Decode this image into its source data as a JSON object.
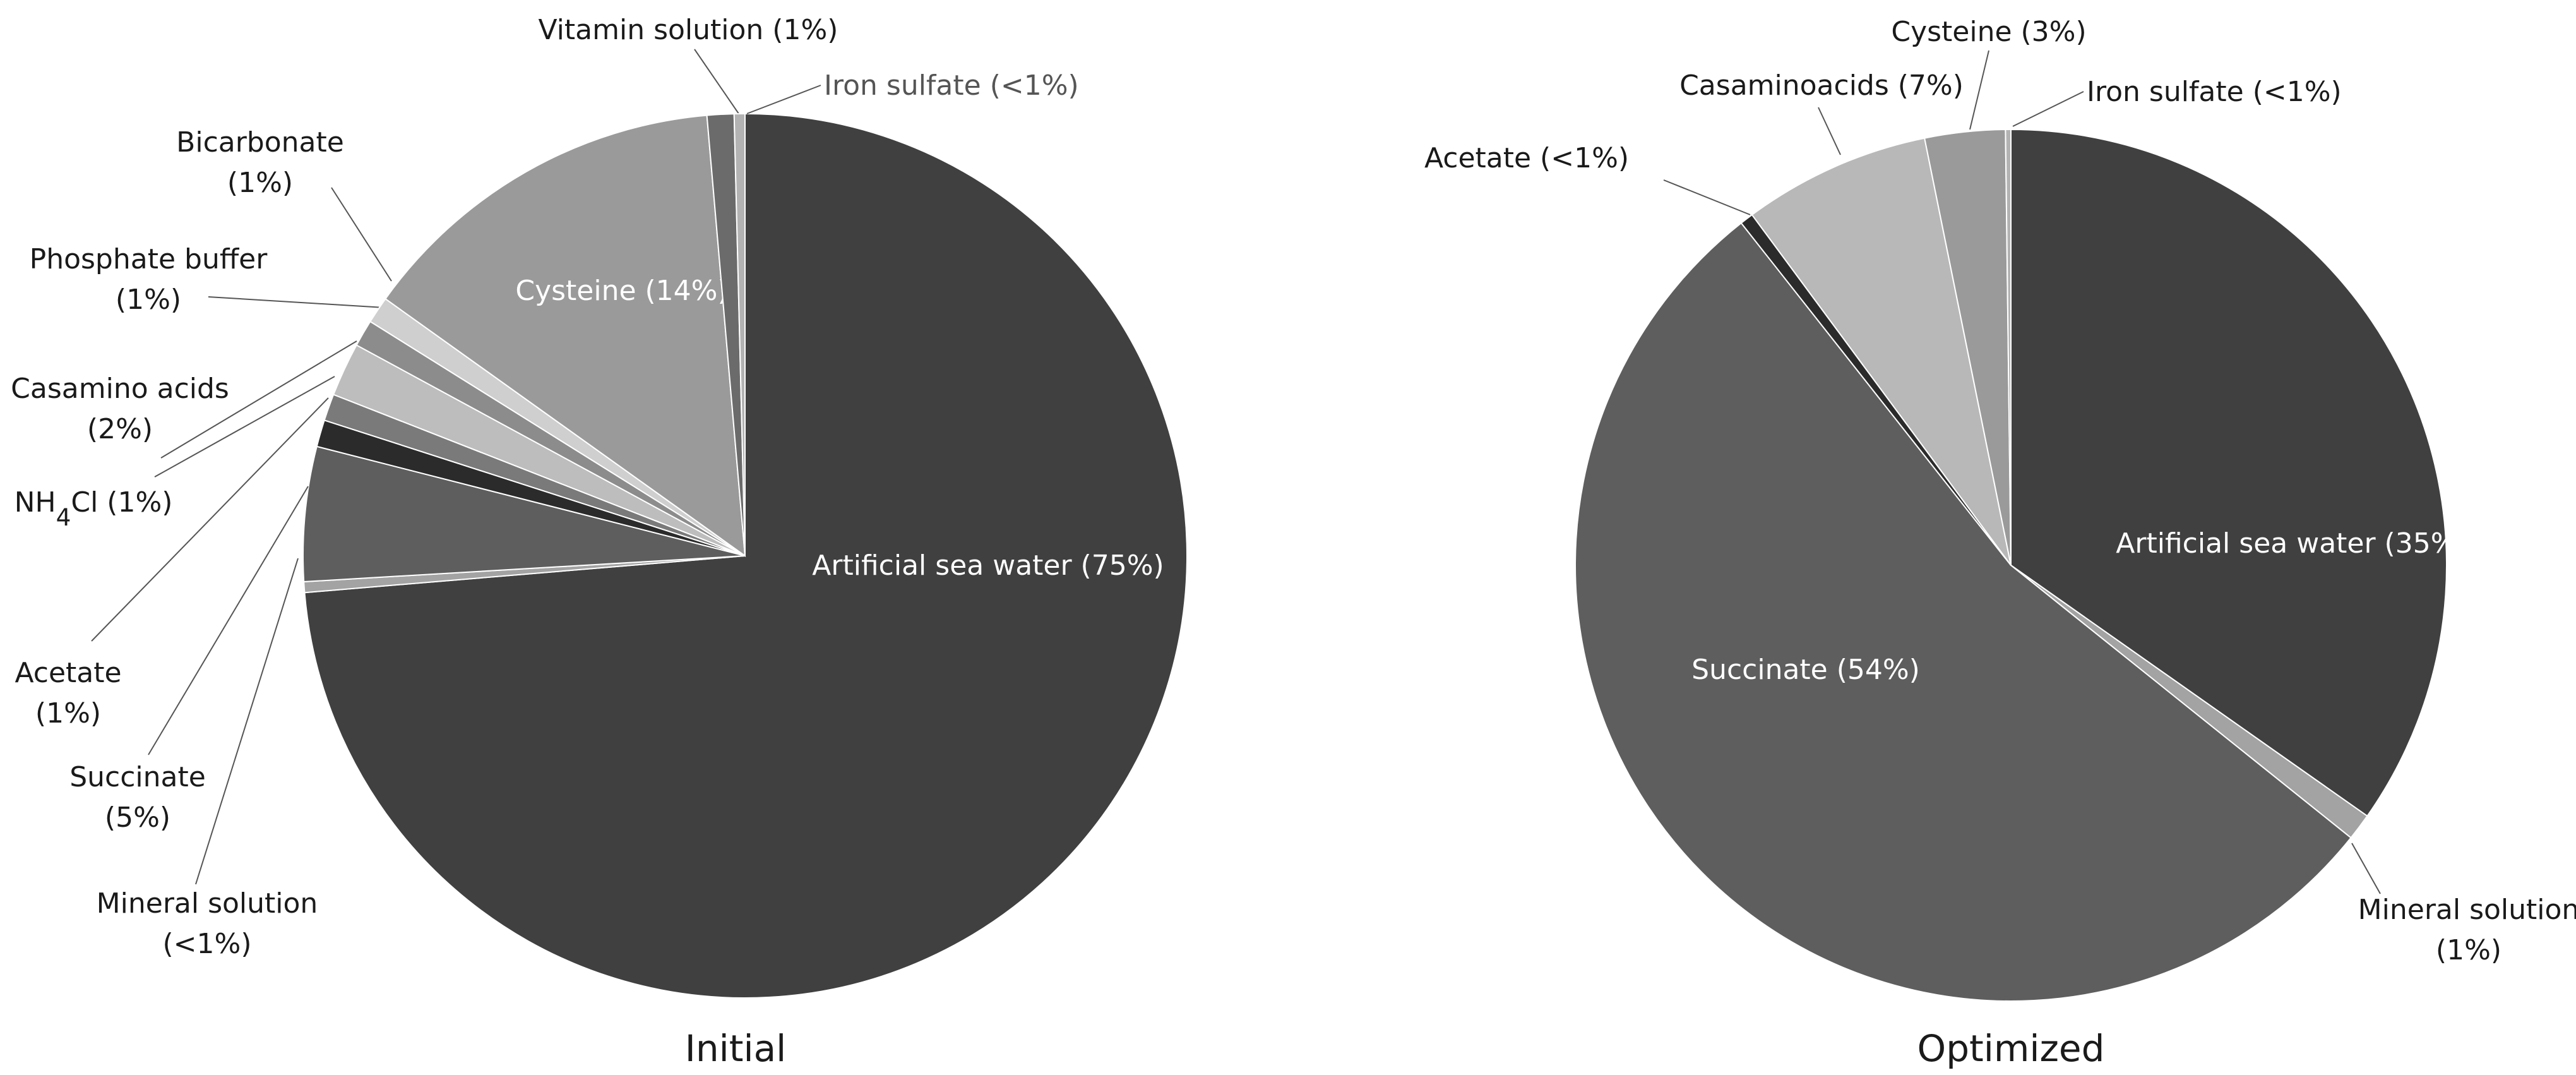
{
  "chart_data": [
    {
      "type": "pie",
      "title": "Initial",
      "slices": [
        {
          "label": "Artificial sea water",
          "value": 75,
          "display": "Artificial sea water (75%)",
          "color": "#404040"
        },
        {
          "label": "Mineral solution",
          "value": 0.4,
          "display": "Mineral solution (<1%)",
          "color": "#a3a3a3"
        },
        {
          "label": "Succinate",
          "value": 5,
          "display": "Succinate (5%)",
          "color": "#5e5e5e"
        },
        {
          "label": "Acetate",
          "value": 1,
          "display": "Acetate (1%)",
          "color": "#2b2b2b"
        },
        {
          "label": "NH4Cl",
          "value": 1,
          "display": "NH4Cl (1%)",
          "color": "#7a7a7a"
        },
        {
          "label": "Casamino acids",
          "value": 2,
          "display": "Casamino acids (2%)",
          "color": "#bdbdbd"
        },
        {
          "label": "Phosphate buffer",
          "value": 1,
          "display": "Phosphate buffer (1%)",
          "color": "#8c8c8c"
        },
        {
          "label": "Bicarbonate",
          "value": 1,
          "display": "Bicarbonate (1%)",
          "color": "#cfcfcf"
        },
        {
          "label": "Cysteine",
          "value": 14,
          "display": "Cysteine (14%)",
          "color": "#9a9a9a"
        },
        {
          "label": "Vitamin solution",
          "value": 1,
          "display": "Vitamin solution (1%)",
          "color": "#6b6b6b"
        },
        {
          "label": "Iron sulfate",
          "value": 0.4,
          "display": "Iron sulfate (<1%)",
          "color": "#b3b3b3"
        }
      ]
    },
    {
      "type": "pie",
      "title": "Optimized",
      "slices": [
        {
          "label": "Artificial sea water",
          "value": 35,
          "display": "Artificial sea water (35%)",
          "color": "#404040"
        },
        {
          "label": "Mineral solution",
          "value": 1,
          "display": "Mineral solution (1%)",
          "color": "#a3a3a3"
        },
        {
          "label": "Succinate",
          "value": 54,
          "display": "Succinate (54%)",
          "color": "#5e5e5e"
        },
        {
          "label": "Acetate",
          "value": 0.5,
          "display": "Acetate (<1%)",
          "color": "#2b2b2b"
        },
        {
          "label": "Casaminoacids",
          "value": 7,
          "display": "Casaminoacids (7%)",
          "color": "#b8b8b8"
        },
        {
          "label": "Cysteine",
          "value": 3,
          "display": "Cysteine (3%)",
          "color": "#9a9a9a"
        },
        {
          "label": "Iron sulfate",
          "value": 0.2,
          "display": "Iron sulfate (<1%)",
          "color": "#b3b3b3"
        }
      ]
    }
  ]
}
